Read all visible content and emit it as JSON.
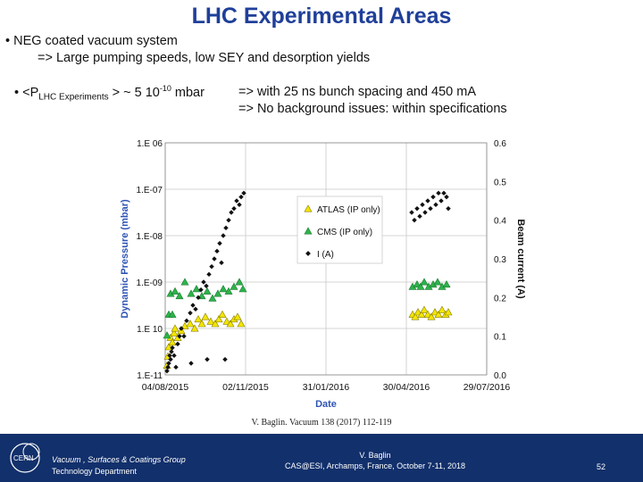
{
  "slide": {
    "title": "LHC Experimental Areas",
    "bullet1": "• NEG coated vacuum system",
    "bullet1_sub": "=> Large pumping speeds, low SEY and desorption yields",
    "bullet2_pre": "• <P",
    "bullet2_sub": "LHC Experiments",
    "bullet2_mid": " > ~ 5 10",
    "bullet2_sup": "-10",
    "bullet2_post": " mbar",
    "note1": "=> with 25 ns bunch spacing and 450 mA",
    "note2": "=> No background issues: within specifications",
    "reference": "V. Baglin. Vacuum 138 (2017) 112-119"
  },
  "footer": {
    "group_line1": "Vacuum , Surfaces & Coatings Group",
    "group_line2": "Technology Department",
    "author": "V. Baglin",
    "event": "CAS@ESI, Archamps, France, October 7-11, 2018",
    "page": "52",
    "logo_text": "CERN",
    "logo_icon": "cern-logo-icon"
  },
  "chart_data": {
    "type": "scatter",
    "xlabel": "Date",
    "ylabel": "Dynamic Pressure (mbar)",
    "y2label": "Beam current (A)",
    "x_ticks": [
      "04/08/2015",
      "02/11/2015",
      "31/01/2016",
      "30/04/2016",
      "29/07/2016"
    ],
    "xlim": [
      "2015-08-04",
      "2016-07-29"
    ],
    "y_ticks": [
      "1.E 06",
      "1.E-07",
      "1.E-08",
      "1.E-09",
      "1.E 10",
      "1.E-11"
    ],
    "ylim_log10": [
      -11,
      -6
    ],
    "y2_ticks": [
      "0.6",
      "0.5",
      "0.4",
      "0.3",
      "0.2",
      "0.1",
      "0.0"
    ],
    "y2lim": [
      0,
      0.6
    ],
    "grid": true,
    "legend_placement": "upper-center",
    "colors": {
      "atlas": "#f2e600",
      "cms": "#2db34a",
      "current": "#111111"
    },
    "series": [
      {
        "name": "ATLAS (IP only)",
        "axis": "left",
        "marker": "triangle",
        "points": [
          [
            "2015-08-06",
            -10.8
          ],
          [
            "2015-08-07",
            -10.6
          ],
          [
            "2015-08-08",
            -10.4
          ],
          [
            "2015-08-10",
            -10.2
          ],
          [
            "2015-08-12",
            -10.3
          ],
          [
            "2015-08-14",
            -10.1
          ],
          [
            "2015-08-15",
            -10.0
          ],
          [
            "2015-08-18",
            -10.2
          ],
          [
            "2015-08-22",
            -10.05
          ],
          [
            "2015-08-26",
            -9.95
          ],
          [
            "2015-09-01",
            -9.9
          ],
          [
            "2015-09-06",
            -10.0
          ],
          [
            "2015-09-10",
            -9.8
          ],
          [
            "2015-09-14",
            -9.9
          ],
          [
            "2015-09-18",
            -9.75
          ],
          [
            "2015-09-24",
            -9.85
          ],
          [
            "2015-09-29",
            -9.9
          ],
          [
            "2015-10-03",
            -9.8
          ],
          [
            "2015-10-07",
            -9.7
          ],
          [
            "2015-10-12",
            -9.85
          ],
          [
            "2015-10-16",
            -9.9
          ],
          [
            "2015-10-20",
            -9.8
          ],
          [
            "2015-10-24",
            -9.75
          ],
          [
            "2015-10-28",
            -9.9
          ],
          [
            "2016-05-07",
            -9.7
          ],
          [
            "2016-05-10",
            -9.75
          ],
          [
            "2016-05-13",
            -9.65
          ],
          [
            "2016-05-17",
            -9.7
          ],
          [
            "2016-05-20",
            -9.6
          ],
          [
            "2016-05-24",
            -9.7
          ],
          [
            "2016-05-28",
            -9.75
          ],
          [
            "2016-06-01",
            -9.65
          ],
          [
            "2016-06-05",
            -9.7
          ],
          [
            "2016-06-09",
            -9.6
          ],
          [
            "2016-06-13",
            -9.7
          ],
          [
            "2016-06-16",
            -9.65
          ]
        ]
      },
      {
        "name": "CMS (IP only)",
        "axis": "left",
        "marker": "triangle",
        "points": [
          [
            "2015-08-06",
            -10.15
          ],
          [
            "2015-08-08",
            -9.7
          ],
          [
            "2015-08-10",
            -9.25
          ],
          [
            "2015-08-12",
            -9.7
          ],
          [
            "2015-08-15",
            -9.2
          ],
          [
            "2015-08-20",
            -9.3
          ],
          [
            "2015-08-26",
            -9.0
          ],
          [
            "2015-09-02",
            -9.25
          ],
          [
            "2015-09-08",
            -9.15
          ],
          [
            "2015-09-14",
            -9.3
          ],
          [
            "2015-09-20",
            -9.2
          ],
          [
            "2015-09-26",
            -9.35
          ],
          [
            "2015-10-02",
            -9.25
          ],
          [
            "2015-10-08",
            -9.15
          ],
          [
            "2015-10-14",
            -9.2
          ],
          [
            "2015-10-20",
            -9.1
          ],
          [
            "2015-10-26",
            -9.0
          ],
          [
            "2015-10-30",
            -9.15
          ],
          [
            "2016-05-07",
            -9.1
          ],
          [
            "2016-05-12",
            -9.05
          ],
          [
            "2016-05-16",
            -9.1
          ],
          [
            "2016-05-20",
            -9.0
          ],
          [
            "2016-05-25",
            -9.1
          ],
          [
            "2016-05-30",
            -9.05
          ],
          [
            "2016-06-04",
            -9.0
          ],
          [
            "2016-06-09",
            -9.1
          ],
          [
            "2016-06-14",
            -9.05
          ]
        ]
      },
      {
        "name": "I (A)",
        "axis": "right",
        "marker": "diamond",
        "points": [
          [
            "2015-08-06",
            0.01
          ],
          [
            "2015-08-07",
            0.02
          ],
          [
            "2015-08-08",
            0.03
          ],
          [
            "2015-08-09",
            0.05
          ],
          [
            "2015-08-10",
            0.04
          ],
          [
            "2015-08-11",
            0.06
          ],
          [
            "2015-08-12",
            0.07
          ],
          [
            "2015-08-14",
            0.05
          ],
          [
            "2015-08-16",
            0.02
          ],
          [
            "2015-08-18",
            0.08
          ],
          [
            "2015-08-20",
            0.1
          ],
          [
            "2015-08-22",
            0.12
          ],
          [
            "2015-08-25",
            0.1
          ],
          [
            "2015-08-28",
            0.14
          ],
          [
            "2015-09-01",
            0.16
          ],
          [
            "2015-09-04",
            0.18
          ],
          [
            "2015-09-07",
            0.17
          ],
          [
            "2015-09-10",
            0.2
          ],
          [
            "2015-09-13",
            0.22
          ],
          [
            "2015-09-16",
            0.24
          ],
          [
            "2015-09-19",
            0.23
          ],
          [
            "2015-09-22",
            0.26
          ],
          [
            "2015-09-25",
            0.28
          ],
          [
            "2015-09-28",
            0.3
          ],
          [
            "2015-10-01",
            0.32
          ],
          [
            "2015-10-04",
            0.34
          ],
          [
            "2015-10-06",
            0.29
          ],
          [
            "2015-10-08",
            0.36
          ],
          [
            "2015-10-11",
            0.38
          ],
          [
            "2015-10-14",
            0.4
          ],
          [
            "2015-10-17",
            0.42
          ],
          [
            "2015-10-20",
            0.43
          ],
          [
            "2015-10-23",
            0.45
          ],
          [
            "2015-10-26",
            0.44
          ],
          [
            "2015-10-28",
            0.46
          ],
          [
            "2015-10-31",
            0.47
          ],
          [
            "2015-09-02",
            0.03
          ],
          [
            "2015-09-20",
            0.04
          ],
          [
            "2015-10-10",
            0.04
          ],
          [
            "2016-05-06",
            0.42
          ],
          [
            "2016-05-09",
            0.4
          ],
          [
            "2016-05-12",
            0.43
          ],
          [
            "2016-05-15",
            0.41
          ],
          [
            "2016-05-18",
            0.44
          ],
          [
            "2016-05-21",
            0.42
          ],
          [
            "2016-05-24",
            0.45
          ],
          [
            "2016-05-27",
            0.43
          ],
          [
            "2016-05-30",
            0.46
          ],
          [
            "2016-06-02",
            0.44
          ],
          [
            "2016-06-05",
            0.47
          ],
          [
            "2016-06-08",
            0.45
          ],
          [
            "2016-06-11",
            0.47
          ],
          [
            "2016-06-14",
            0.46
          ],
          [
            "2016-06-16",
            0.43
          ]
        ]
      }
    ]
  }
}
